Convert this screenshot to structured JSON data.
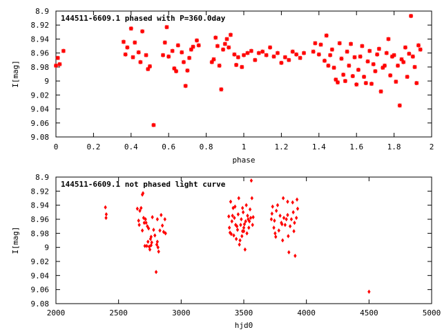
{
  "chart_data": [
    {
      "type": "scatter",
      "title": "144511-6609.1 phased with P=360.0day",
      "xlabel": "phase",
      "ylabel": "I[mag]",
      "xlim": [
        0,
        2
      ],
      "ylim": [
        9.08,
        8.9
      ],
      "y_inverted": true,
      "x_ticks": [
        "0",
        "0.2",
        "0.4",
        "0.6",
        "0.8",
        "1",
        "1.2",
        "1.4",
        "1.6",
        "1.8",
        "2"
      ],
      "y_ticks": [
        "8.9",
        "8.92",
        "8.94",
        "8.96",
        "8.98",
        "9",
        "9.02",
        "9.04",
        "9.06",
        "9.08"
      ],
      "grid": false,
      "marker_color": "#ff0000",
      "series": [
        {
          "x": [
            0.0,
            0.01,
            0.02,
            0.04,
            0.36,
            0.37,
            0.38,
            0.4,
            0.41,
            0.42,
            0.44,
            0.45,
            0.46,
            0.48,
            0.49,
            0.5,
            0.52,
            0.57,
            0.58,
            0.59,
            0.6,
            0.62,
            0.63,
            0.64,
            0.65,
            0.67,
            0.68,
            0.69,
            0.7,
            0.71,
            0.72,
            0.73,
            0.75,
            0.76,
            0.83,
            0.84,
            0.85,
            0.86,
            0.87,
            0.88,
            0.89,
            0.9,
            0.91,
            0.92,
            0.93,
            0.95,
            0.96,
            0.97,
            1.37,
            1.38,
            1.4,
            1.41,
            1.43,
            1.44,
            1.45,
            1.46,
            1.47,
            1.48,
            1.49,
            1.5,
            1.51,
            1.52,
            1.53,
            1.54,
            1.55,
            1.56,
            1.57,
            1.58,
            1.59,
            1.6,
            1.61,
            1.62,
            1.63,
            1.64,
            1.65,
            1.66,
            1.67,
            1.68,
            1.69,
            1.7,
            1.71,
            1.72,
            1.73,
            1.74,
            1.75,
            1.76,
            1.77,
            1.78,
            1.79,
            1.8,
            1.81,
            1.82,
            1.83,
            1.84,
            1.85,
            1.86,
            1.87,
            1.88,
            1.89,
            1.9,
            1.91,
            1.92,
            1.93,
            1.94,
            0.99,
            1.0,
            1.02,
            1.04,
            1.06,
            1.08,
            1.1,
            1.12,
            1.14,
            1.16,
            1.18,
            1.2,
            1.22,
            1.24,
            1.26,
            1.28,
            1.3,
            1.32
          ],
          "y": [
            8.978,
            8.967,
            8.976,
            8.957,
            8.944,
            8.962,
            8.952,
            8.925,
            8.966,
            8.945,
            8.959,
            8.973,
            8.929,
            8.963,
            8.983,
            8.979,
            9.063,
            8.963,
            8.945,
            8.923,
            8.965,
            8.957,
            8.982,
            8.986,
            8.949,
            8.959,
            8.973,
            9.007,
            8.985,
            8.967,
            8.955,
            8.951,
            8.942,
            8.949,
            8.973,
            8.969,
            8.938,
            8.95,
            8.978,
            9.012,
            8.955,
            8.947,
            8.94,
            8.952,
            8.934,
            8.962,
            8.977,
            8.966,
            8.958,
            8.946,
            8.962,
            8.948,
            8.971,
            8.935,
            8.978,
            8.963,
            8.955,
            8.981,
            8.998,
            9.002,
            8.946,
            8.968,
            8.991,
            9.0,
            8.958,
            8.978,
            8.947,
            8.993,
            8.966,
            9.005,
            8.984,
            8.965,
            8.95,
            8.994,
            9.003,
            8.972,
            8.957,
            9.004,
            8.976,
            8.986,
            8.962,
            8.954,
            9.015,
            8.981,
            8.978,
            8.96,
            8.94,
            8.992,
            8.965,
            8.963,
            9.001,
            8.978,
            9.035,
            8.969,
            8.973,
            8.952,
            8.994,
            8.961,
            8.907,
            8.965,
            8.98,
            9.003,
            8.949,
            8.955,
            8.98,
            8.963,
            8.96,
            8.957,
            8.97,
            8.96,
            8.958,
            8.963,
            8.952,
            8.965,
            8.96,
            8.974,
            8.966,
            8.97,
            8.958,
            8.962,
            8.967,
            8.96
          ],
          "marker": "star"
        }
      ]
    },
    {
      "type": "scatter",
      "title": "144511-6609.1 not phased light curve",
      "xlabel": "hjd0",
      "ylabel": "I[mag]",
      "xlim": [
        2000,
        5000
      ],
      "ylim": [
        9.08,
        8.9
      ],
      "y_inverted": true,
      "x_ticks": [
        "2000",
        "2500",
        "3000",
        "3500",
        "4000",
        "4500",
        "5000"
      ],
      "y_ticks": [
        "8.9",
        "8.92",
        "8.94",
        "8.96",
        "8.98",
        "9",
        "9.02",
        "9.04",
        "9.06",
        "9.08"
      ],
      "grid": false,
      "marker_color": "#ff0000",
      "series": [
        {
          "x": [
            2395,
            2400,
            2402,
            2650,
            2660,
            2665,
            2670,
            2680,
            2690,
            2695,
            2700,
            2705,
            2710,
            2715,
            2720,
            2725,
            2730,
            2735,
            2740,
            2745,
            2750,
            2755,
            2760,
            2765,
            2770,
            2780,
            2790,
            2800,
            2805,
            2810,
            2815,
            2820,
            2830,
            2840,
            2850,
            2860,
            2870,
            2875,
            3380,
            3385,
            3390,
            3395,
            3400,
            3405,
            3410,
            3415,
            3420,
            3425,
            3430,
            3435,
            3440,
            3445,
            3450,
            3455,
            3460,
            3465,
            3470,
            3475,
            3480,
            3485,
            3490,
            3495,
            3500,
            3505,
            3510,
            3515,
            3520,
            3525,
            3530,
            3535,
            3540,
            3545,
            3550,
            3555,
            3560,
            3565,
            3570,
            3575,
            3720,
            3725,
            3730,
            3740,
            3745,
            3750,
            3755,
            3760,
            3770,
            3780,
            3790,
            3800,
            3805,
            3810,
            3815,
            3820,
            3830,
            3840,
            3850,
            3855,
            3860,
            3870,
            3880,
            3890,
            3895,
            3900,
            3905,
            3910,
            3920,
            3925,
            3930,
            4500,
            2690,
            2760,
            2810,
            3490,
            3500,
            3850
          ],
          "y": [
            8.943,
            8.958,
            8.953,
            8.945,
            8.962,
            8.968,
            8.948,
            8.944,
            8.976,
            8.923,
            8.958,
            8.965,
            8.998,
            8.96,
            8.965,
            8.998,
            8.97,
            8.992,
            8.973,
            8.999,
            9.003,
            8.988,
            8.985,
            8.993,
            8.957,
            8.975,
            8.983,
            9.035,
            8.996,
            8.992,
            9.0,
            9.006,
            8.976,
            8.954,
            8.969,
            8.978,
            8.96,
            8.98,
            8.956,
            8.972,
            8.979,
            8.935,
            8.981,
            8.963,
            8.955,
            8.944,
            8.983,
            8.958,
            8.942,
            8.968,
            8.988,
            8.97,
            8.975,
            8.953,
            8.93,
            8.996,
            8.99,
            8.968,
            8.96,
            8.984,
            8.977,
            8.95,
            8.972,
            8.967,
            9.003,
            8.963,
            8.94,
            8.98,
            8.955,
            8.96,
            8.972,
            8.963,
            8.946,
            8.958,
            8.905,
            8.93,
            8.968,
            8.957,
            8.96,
            8.952,
            8.942,
            8.972,
            8.962,
            8.98,
            8.985,
            8.948,
            8.94,
            8.976,
            8.955,
            8.965,
            8.967,
            8.99,
            8.93,
            8.958,
            8.968,
            8.96,
            8.954,
            8.984,
            9.007,
            8.97,
            8.96,
            8.936,
            8.95,
            8.977,
            8.965,
            9.012,
            8.958,
            8.932,
            8.945,
            9.063,
            8.925,
            8.997,
            8.96,
            8.944,
            8.977,
            8.935
          ],
          "marker": "diamond"
        }
      ]
    }
  ]
}
